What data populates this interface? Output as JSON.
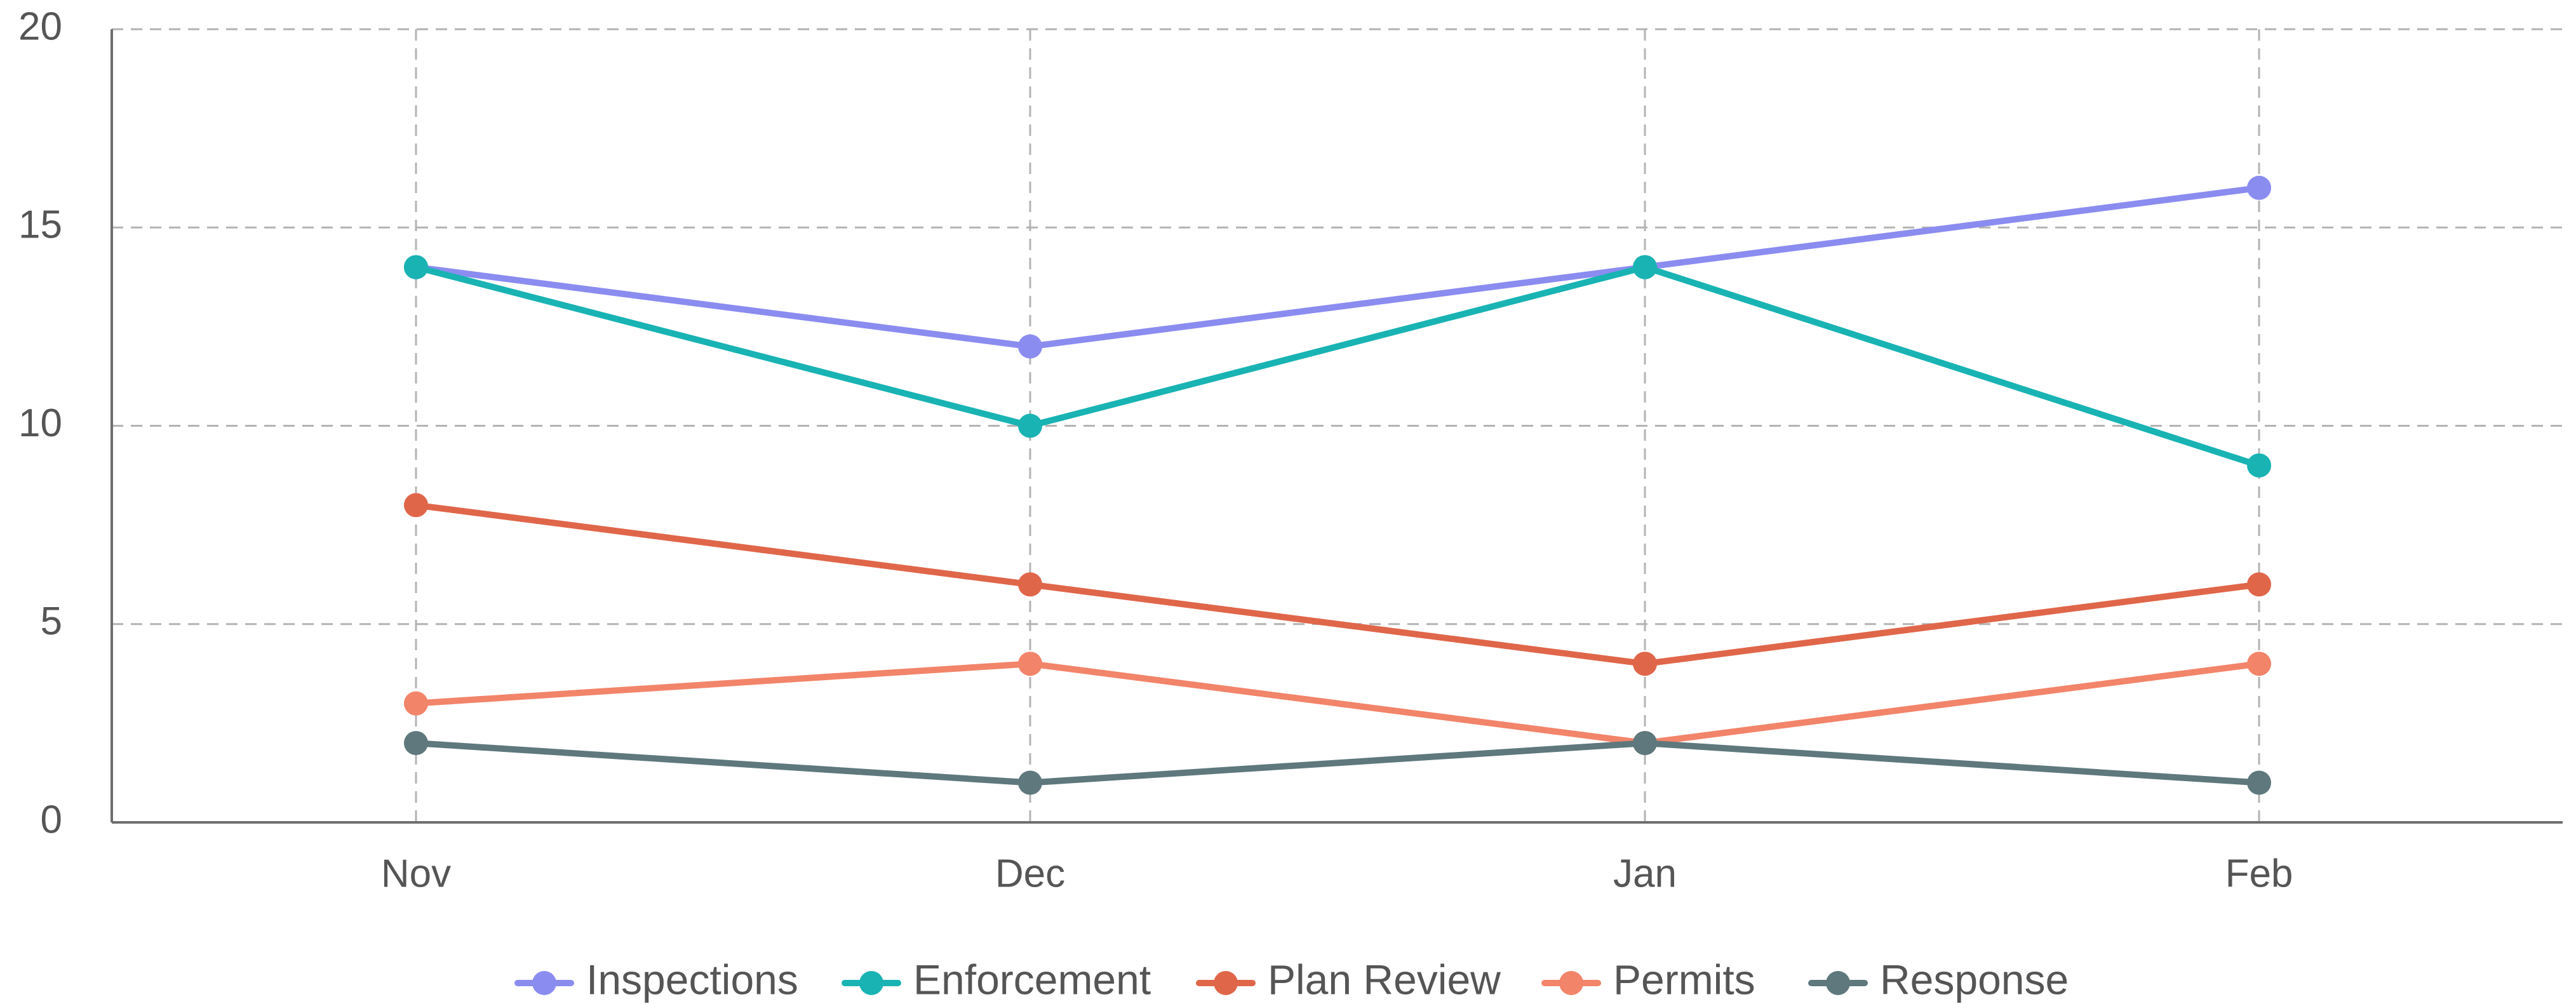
{
  "chart_data": {
    "type": "line",
    "title": "",
    "xlabel": "",
    "ylabel": "",
    "categories": [
      "Nov",
      "Dec",
      "Jan",
      "Feb"
    ],
    "ylim": [
      0,
      20
    ],
    "yticks": [
      0,
      5,
      10,
      15,
      20
    ],
    "grid": true,
    "legend_position": "bottom",
    "series": [
      {
        "name": "Inspections",
        "color": "#8b8cf0",
        "values": [
          14,
          12,
          14,
          16
        ]
      },
      {
        "name": "Enforcement",
        "color": "#19b3b3",
        "values": [
          14,
          10,
          14,
          9
        ]
      },
      {
        "name": "Plan Review",
        "color": "#e0664a",
        "values": [
          8,
          6,
          4,
          6
        ]
      },
      {
        "name": "Permits",
        "color": "#f2846a",
        "values": [
          3,
          4,
          2,
          4
        ]
      },
      {
        "name": "Response",
        "color": "#5e787d",
        "values": [
          2,
          1,
          2,
          1
        ]
      }
    ]
  }
}
